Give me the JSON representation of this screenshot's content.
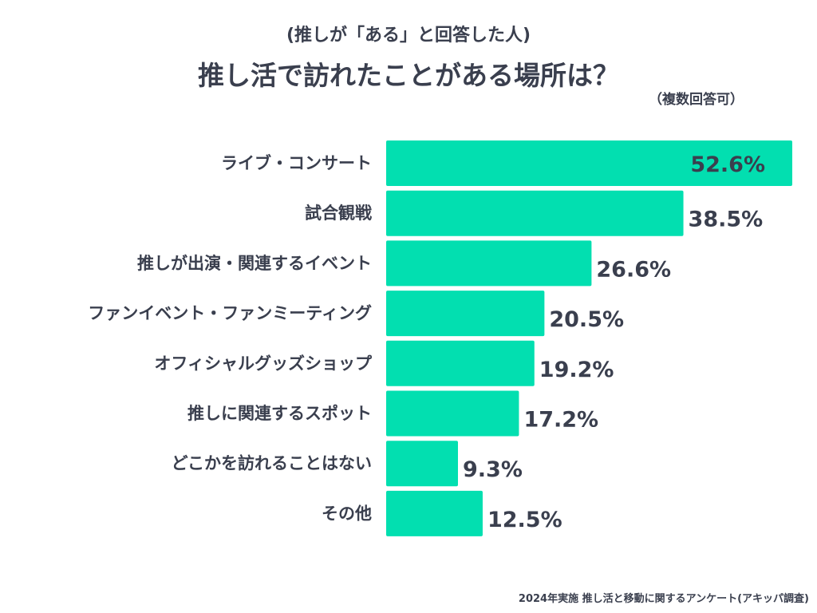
{
  "header": {
    "subtitle": "(推しが「ある」と回答した人)",
    "title": "推し活で訪れたことがある場所は？",
    "note": "（複数回答可）"
  },
  "footer": {
    "source": "2024年実施 推し活と移動に関するアンケート(アキッパ調査)"
  },
  "colors": {
    "bar": "#02dfb0",
    "text": "#3a3f4e",
    "value_inside": "#3a3f4e"
  },
  "chart_data": {
    "type": "bar",
    "orientation": "horizontal",
    "title": "推し活で訪れたことがある場所は？",
    "subtitle": "(推しが「ある」と回答した人)",
    "xlabel": "",
    "ylabel": "",
    "unit": "%",
    "xlim": [
      0,
      52.6
    ],
    "grid": false,
    "categories": [
      "ライブ・コンサート",
      "試合観戦",
      "推しが出演・関連するイベント",
      "ファンイベント・ファンミーティング",
      "オフィシャルグッズショップ",
      "推しに関連するスポット",
      "どこかを訪れることはない",
      "その他"
    ],
    "values": [
      52.6,
      38.5,
      26.6,
      20.5,
      19.2,
      17.2,
      9.3,
      12.5
    ],
    "labels": [
      "52.6%",
      "38.5%",
      "26.6%",
      "20.5%",
      "19.2%",
      "17.2%",
      "9.3%",
      "12.5%"
    ]
  }
}
